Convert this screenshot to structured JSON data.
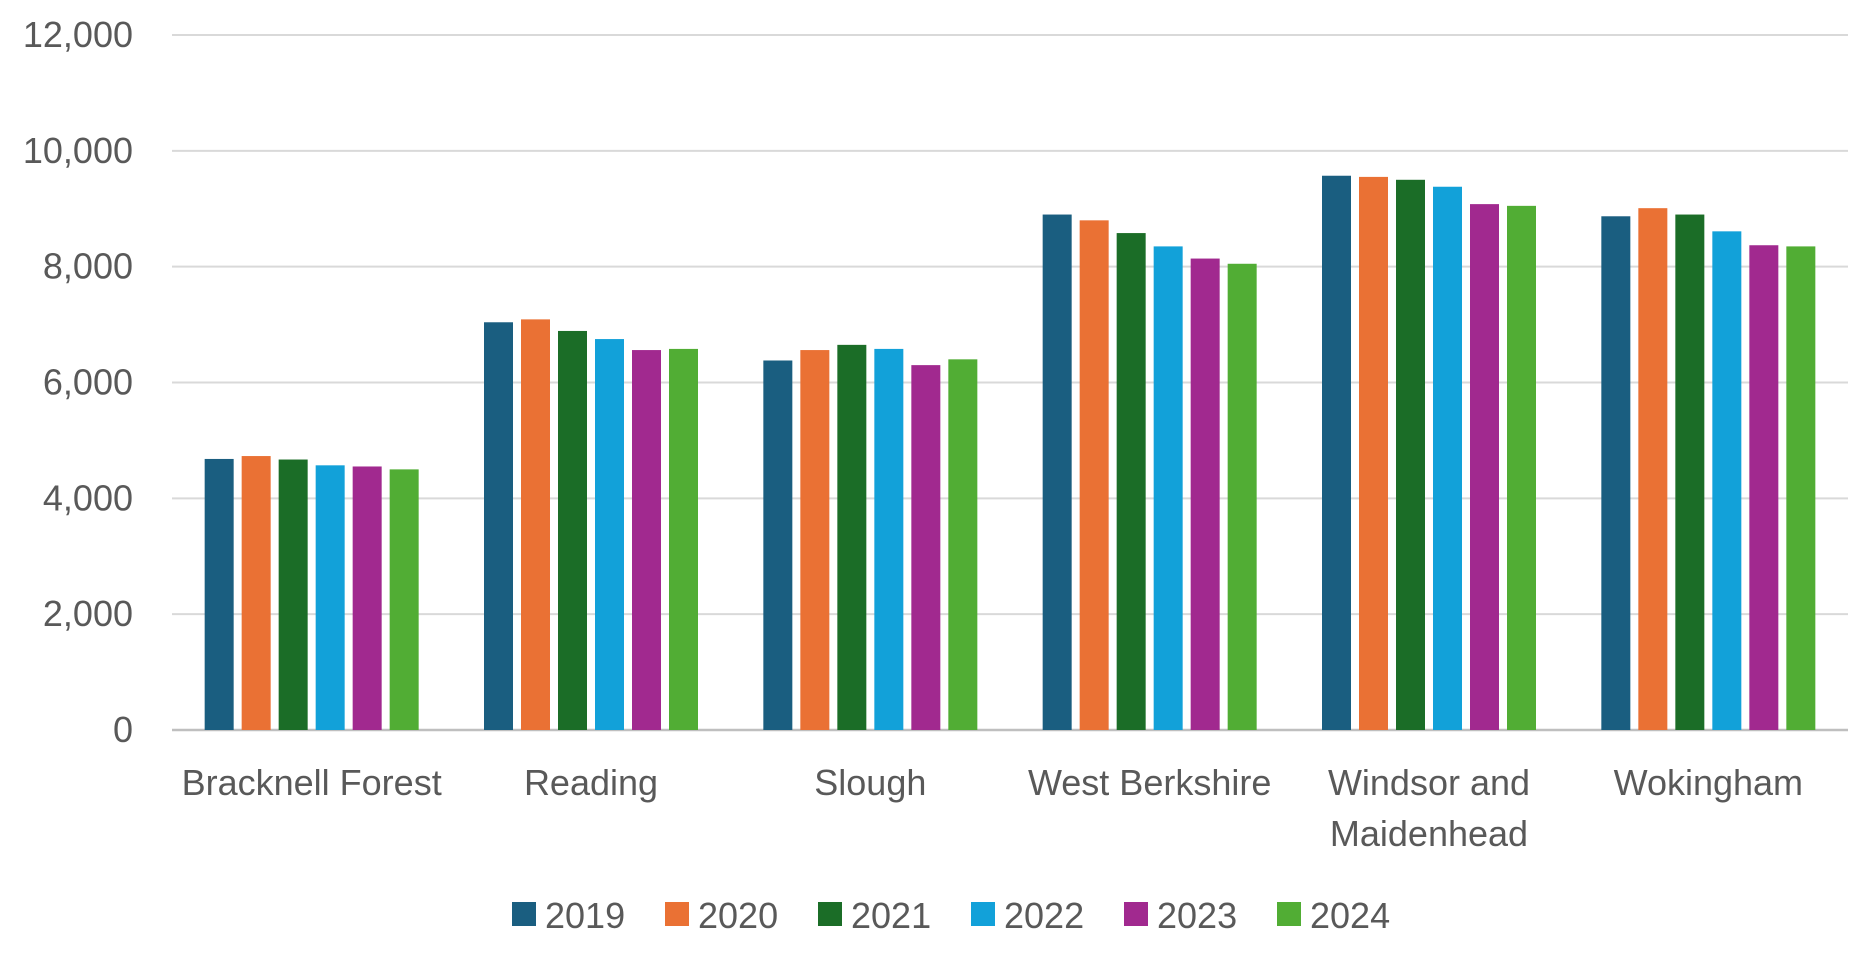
{
  "chart_data": {
    "type": "bar",
    "title": "",
    "xlabel": "",
    "ylabel": "",
    "ylim": [
      0,
      12000
    ],
    "yticks": [
      "0",
      "2,000",
      "4,000",
      "6,000",
      "8,000",
      "10,000",
      "12,000"
    ],
    "ytick_values": [
      0,
      2000,
      4000,
      6000,
      8000,
      10000,
      12000
    ],
    "grid": true,
    "legend_position": "bottom",
    "categories": [
      [
        "Bracknell Forest"
      ],
      [
        "Reading"
      ],
      [
        "Slough"
      ],
      [
        "West Berkshire"
      ],
      [
        "Windsor and",
        "Maidenhead"
      ],
      [
        "Wokingham"
      ]
    ],
    "series": [
      {
        "name": "2019",
        "color": "#1a5e80",
        "values": [
          4680,
          7040,
          6380,
          8900,
          9570,
          8870
        ]
      },
      {
        "name": "2020",
        "color": "#ea7134",
        "values": [
          4730,
          7090,
          6560,
          8800,
          9550,
          9010
        ]
      },
      {
        "name": "2021",
        "color": "#1b6d27",
        "values": [
          4670,
          6890,
          6650,
          8580,
          9500,
          8900
        ]
      },
      {
        "name": "2022",
        "color": "#12a1d9",
        "values": [
          4570,
          6750,
          6580,
          8350,
          9380,
          8610
        ]
      },
      {
        "name": "2023",
        "color": "#a1298f",
        "values": [
          4550,
          6560,
          6300,
          8140,
          9080,
          8370
        ]
      },
      {
        "name": "2024",
        "color": "#51ad34",
        "values": [
          4500,
          6580,
          6400,
          8050,
          9050,
          8350
        ]
      }
    ]
  }
}
